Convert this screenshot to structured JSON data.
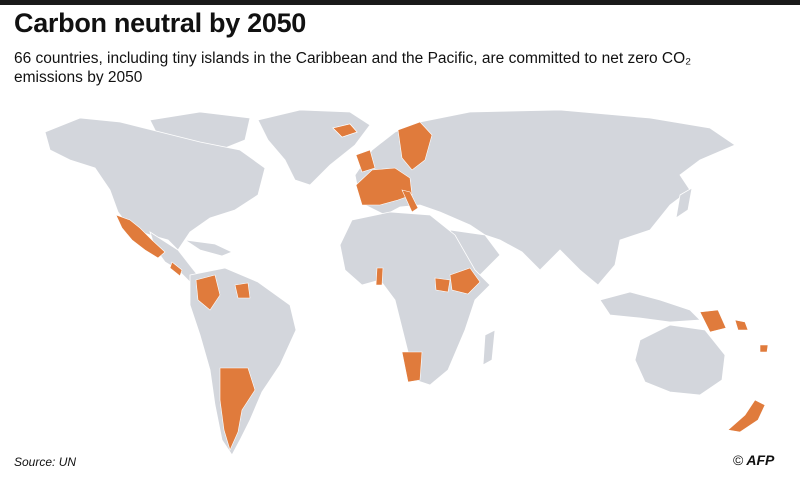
{
  "header": {
    "title": "Carbon neutral by 2050",
    "subtitle": "66 countries, including tiny islands in the Caribbean and the Pacific, are committed to net zero CO₂ emissions by 2050"
  },
  "map": {
    "land_color": "#d3d6dc",
    "highlight_color": "#e07b3c",
    "background_color": "#ffffff"
  },
  "footer": {
    "source": "Source: UN",
    "copyright_symbol": "©",
    "agency_logo": "AFP"
  }
}
